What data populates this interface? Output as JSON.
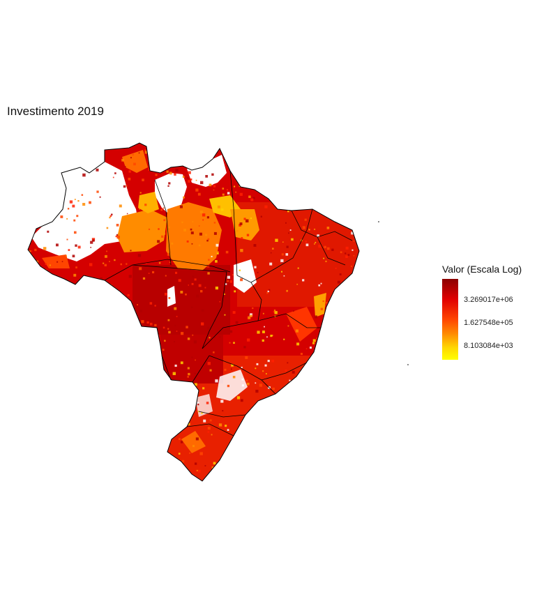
{
  "title": "Investimento 2019",
  "legend": {
    "title": "Valor (Escala Log)",
    "scale": "log",
    "colors": [
      "#8b0000",
      "#e00000",
      "#ff4500",
      "#ff8c00",
      "#ffd700",
      "#ffff00"
    ],
    "ticks": [
      {
        "label": "3.269017e+06"
      },
      {
        "label": "1.627548e+05"
      },
      {
        "label": "8.103084e+03"
      }
    ]
  },
  "map": {
    "region": "Brazil",
    "no_data_color": "#ffffff",
    "border_color": "#000000"
  }
}
